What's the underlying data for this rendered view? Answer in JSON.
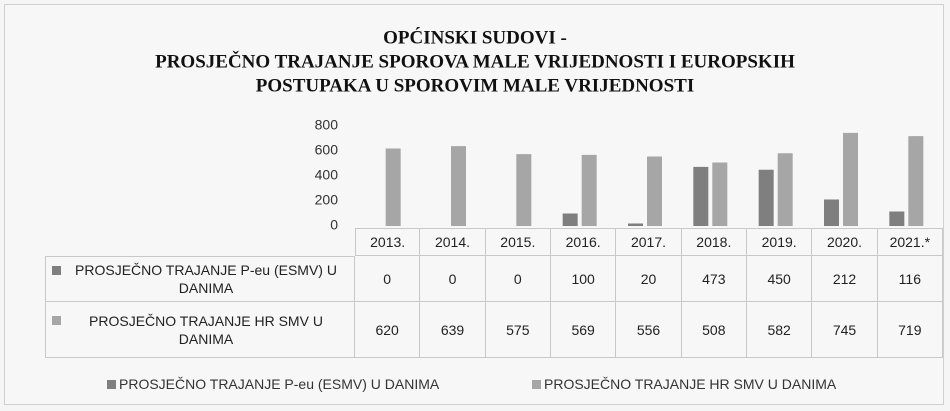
{
  "chart_data": {
    "type": "bar",
    "title": [
      "OPĆINSKI SUDOVI -",
      "PROSJEČNO TRAJANJE SPOROVA MALE VRIJEDNOSTI I EUROPSKIH",
      "POSTUPAKA U SPOROVIM MALE VRIJEDNOSTI"
    ],
    "categories": [
      "2013.",
      "2014.",
      "2015.",
      "2016.",
      "2017.",
      "2018.",
      "2019.",
      "2020.",
      "2021.*"
    ],
    "series": [
      {
        "name": "PROSJEČNO TRAJANJE P-eu (ESMV) U DANIMA",
        "color": "#7f7f7f",
        "values": [
          0,
          0,
          0,
          100,
          20,
          473,
          450,
          212,
          116
        ]
      },
      {
        "name": "PROSJEČNO TRAJANJE HR SMV U DANIMA",
        "color": "#a6a6a6",
        "values": [
          620,
          639,
          575,
          569,
          556,
          508,
          582,
          745,
          719
        ]
      }
    ],
    "ylim": [
      0,
      800
    ],
    "yticks": [
      0,
      200,
      400,
      600,
      800
    ],
    "grid": false,
    "legend": "bottom"
  }
}
